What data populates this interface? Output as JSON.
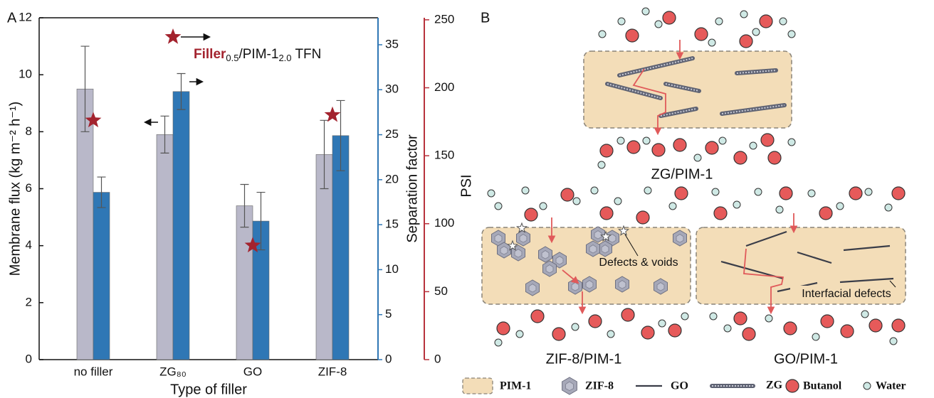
{
  "chart_data": {
    "type": "bar",
    "panel_label": "A",
    "categories": [
      "no filler",
      "ZG₈₀",
      "GO",
      "ZIF-8"
    ],
    "x_label": "Type of filler",
    "y_label": "Membrane flux (kg m⁻² h⁻¹)",
    "y2_label": "Separation factor",
    "y3_label": "PSI",
    "ylim": [
      0,
      12
    ],
    "yticks": [
      0,
      2,
      4,
      6,
      8,
      10,
      12
    ],
    "y2lim": [
      0,
      38
    ],
    "y2ticks": [
      0,
      5,
      10,
      15,
      20,
      25,
      30,
      35
    ],
    "y3lim": [
      0,
      251.5
    ],
    "y3ticks": [
      0,
      50,
      100,
      150,
      200,
      250
    ],
    "y2_color": "#2f77b5",
    "y3_color": "#b8323c",
    "series": [
      {
        "color": "#b9b8c9",
        "values": [
          9.5,
          7.9,
          5.4,
          7.2
        ],
        "errors": [
          1.5,
          0.65,
          0.75,
          1.2
        ]
      },
      {
        "color": "#2f77b5",
        "axis": "y2",
        "values": [
          18.6,
          29.8,
          15.4,
          24.9
        ],
        "errors": [
          1.7,
          2.0,
          3.2,
          3.9
        ]
      },
      {
        "color": "#a3232e",
        "axis": "y3",
        "marker": "star",
        "values": [
          176,
          null,
          84,
          180
        ]
      }
    ],
    "annotation": [
      "Filler",
      "0.5",
      "/PIM-1",
      "2.0",
      " TFN"
    ]
  },
  "diagram": {
    "panel_label": "B",
    "structures": [
      {
        "label": "ZG/PIM-1"
      },
      {
        "label": "ZIF-8/PIM-1",
        "annotation": "Defects & voids"
      },
      {
        "label": "GO/PIM-1",
        "annotation": "Interfacial defects"
      }
    ],
    "legend": [
      "PIM-1",
      "ZIF-8",
      "GO",
      "ZG",
      "Butanol",
      "Water"
    ]
  }
}
